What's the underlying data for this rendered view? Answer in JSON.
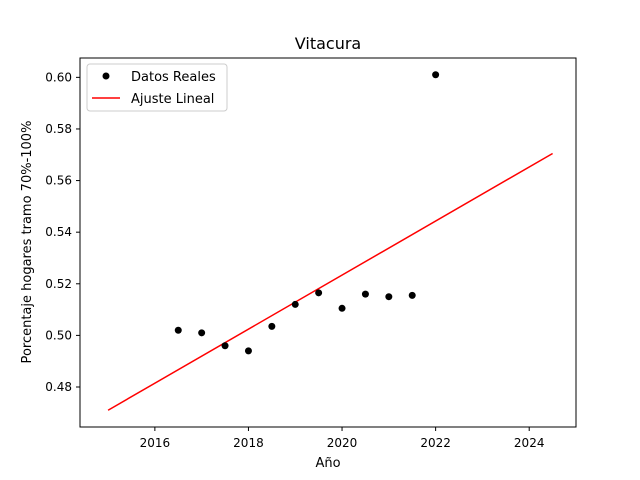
{
  "chart_data": {
    "type": "scatter",
    "title": "Vitacura",
    "xlabel": "Año",
    "ylabel": "Porcentaje hogares tramo 70%-100%",
    "xlim": [
      2014.4,
      2025.0
    ],
    "ylim": [
      0.4645,
      0.6075
    ],
    "xticks": [
      2016,
      2018,
      2020,
      2022,
      2024
    ],
    "xtick_labels": [
      "2016",
      "2018",
      "2020",
      "2022",
      "2024"
    ],
    "yticks": [
      0.48,
      0.5,
      0.52,
      0.54,
      0.56,
      0.58,
      0.6
    ],
    "ytick_labels": [
      "0.48",
      "0.50",
      "0.52",
      "0.54",
      "0.56",
      "0.58",
      "0.60"
    ],
    "grid": false,
    "legend_position": "upper left",
    "series": [
      {
        "name": "Datos Reales",
        "kind": "scatter",
        "color": "#000000",
        "x": [
          2016.5,
          2017.0,
          2017.5,
          2018.0,
          2018.5,
          2019.0,
          2019.5,
          2020.0,
          2020.5,
          2021.0,
          2021.5,
          2022.0
        ],
        "y": [
          0.502,
          0.501,
          0.496,
          0.494,
          0.5035,
          0.512,
          0.5165,
          0.5105,
          0.516,
          0.515,
          0.5155,
          0.601
        ]
      },
      {
        "name": "Ajuste Lineal",
        "kind": "line",
        "color": "#ff0000",
        "x": [
          2015.0,
          2024.5
        ],
        "y": [
          0.471,
          0.5705
        ]
      }
    ]
  }
}
